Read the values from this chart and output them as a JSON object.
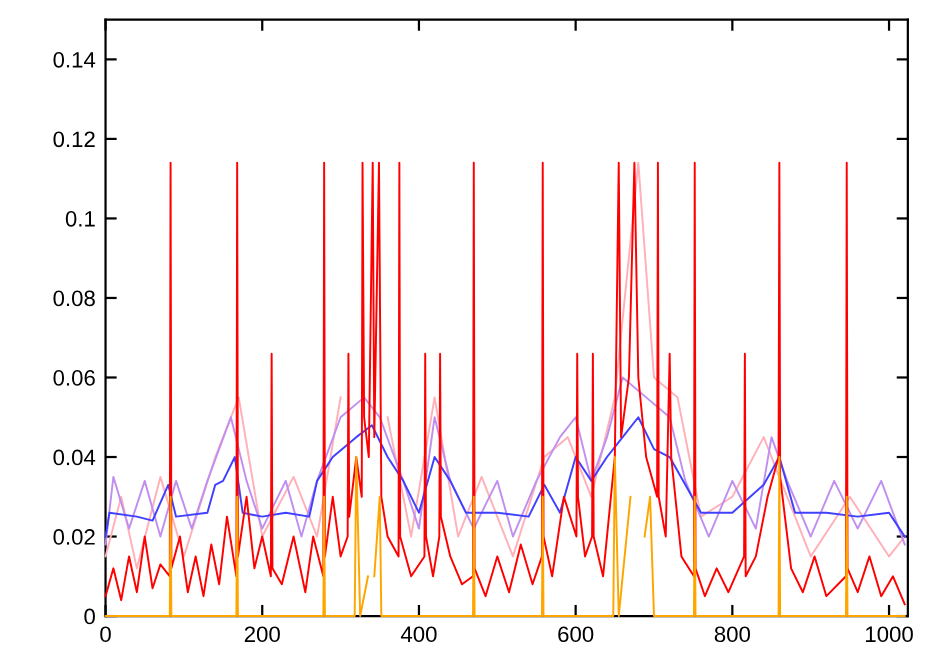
{
  "chart_data": {
    "type": "line",
    "xlim": [
      0,
      1024
    ],
    "ylim": [
      0,
      0.15
    ],
    "xticks": [
      0,
      200,
      400,
      600,
      800,
      1000
    ],
    "yticks": [
      0,
      0.02,
      0.04,
      0.06,
      0.08,
      0.1,
      0.12,
      0.14
    ],
    "grid": false,
    "marker": "none",
    "line_style": "solid",
    "series": [
      {
        "color": "#ffb0b8",
        "x": [
          0,
          20,
          40,
          70,
          100,
          140,
          170,
          200,
          240,
          270,
          300,
          340,
          360,
          390,
          420,
          450,
          480,
          520,
          560,
          590,
          620,
          650,
          680,
          700,
          730,
          760,
          800,
          840,
          870,
          900,
          950,
          1000,
          1020
        ],
        "values": [
          0.015,
          0.03,
          0.012,
          0.035,
          0.015,
          0.04,
          0.055,
          0.02,
          0.035,
          0.02,
          0.055,
          null,
          0.05,
          0.02,
          0.055,
          0.02,
          0.035,
          0.015,
          0.04,
          0.045,
          0.03,
          0.055,
          0.114,
          0.06,
          0.055,
          0.025,
          0.03,
          0.045,
          0.03,
          0.015,
          0.03,
          0.015,
          0.02
        ]
      },
      {
        "color": "#c090f0",
        "x": [
          0,
          10,
          30,
          50,
          70,
          90,
          110,
          130,
          160,
          180,
          200,
          230,
          250,
          270,
          300,
          330,
          350,
          380,
          400,
          420,
          440,
          470,
          500,
          520,
          550,
          580,
          600,
          620,
          640,
          660,
          690,
          720,
          740,
          770,
          800,
          830,
          850,
          870,
          900,
          930,
          960,
          990,
          1020
        ],
        "values": [
          0.018,
          0.035,
          0.022,
          0.034,
          0.02,
          0.034,
          0.022,
          0.034,
          0.05,
          0.034,
          0.022,
          0.034,
          0.02,
          0.034,
          0.05,
          0.055,
          0.05,
          0.034,
          0.022,
          0.05,
          0.034,
          0.022,
          0.034,
          0.02,
          0.034,
          0.045,
          0.05,
          0.034,
          0.045,
          0.06,
          0.055,
          0.05,
          0.034,
          0.02,
          0.034,
          0.022,
          0.045,
          0.034,
          0.02,
          0.034,
          0.022,
          0.034,
          0.018
        ]
      },
      {
        "color": "#4040ff",
        "x": [
          0,
          5,
          40,
          60,
          80,
          90,
          130,
          140,
          150,
          165,
          175,
          200,
          230,
          260,
          270,
          290,
          320,
          340,
          360,
          380,
          400,
          420,
          440,
          460,
          500,
          540,
          560,
          580,
          600,
          620,
          640,
          660,
          680,
          700,
          720,
          740,
          760,
          800,
          840,
          860,
          880,
          920,
          960,
          1000,
          1020
        ],
        "values": [
          0.02,
          0.026,
          0.025,
          0.024,
          0.033,
          0.025,
          0.026,
          0.033,
          0.034,
          0.04,
          0.026,
          0.025,
          0.026,
          0.025,
          0.034,
          0.04,
          0.045,
          0.048,
          0.04,
          0.034,
          0.026,
          0.04,
          0.034,
          0.026,
          0.026,
          0.025,
          0.033,
          0.026,
          0.04,
          0.034,
          0.04,
          0.045,
          0.05,
          0.042,
          0.04,
          0.033,
          0.026,
          0.026,
          0.033,
          0.04,
          0.026,
          0.026,
          0.025,
          0.026,
          0.02
        ]
      },
      {
        "color": "#ff0000",
        "x": [
          0,
          10,
          20,
          30,
          40,
          50,
          60,
          70,
          82,
          83,
          84,
          95,
          105,
          115,
          125,
          135,
          145,
          155,
          167,
          168,
          169,
          180,
          190,
          200,
          211,
          212,
          213,
          225,
          240,
          255,
          265,
          278,
          279,
          280,
          290,
          300,
          309,
          310,
          311,
          320,
          327,
          328,
          330,
          336,
          341,
          343,
          349,
          352,
          360,
          374,
          375,
          376,
          390,
          407,
          408,
          409,
          418,
          426,
          427,
          428,
          440,
          455,
          469,
          470,
          471,
          485,
          500,
          515,
          530,
          545,
          557,
          558,
          559,
          570,
          585,
          601,
          602,
          603,
          612,
          621,
          622,
          623,
          635,
          650,
          655,
          658,
          668,
          675,
          680,
          690,
          704,
          705,
          706,
          715,
          720,
          722,
          735,
          751,
          752,
          753,
          765,
          780,
          795,
          815,
          816,
          817,
          830,
          845,
          859,
          860,
          861,
          875,
          890,
          905,
          920,
          945,
          946,
          947,
          960,
          975,
          990,
          1005,
          1020
        ],
        "values": [
          0.005,
          0.012,
          0.004,
          0.015,
          0.006,
          0.02,
          0.007,
          0.013,
          0.01,
          0.114,
          0.012,
          0.02,
          0.006,
          0.015,
          0.005,
          0.018,
          0.008,
          0.025,
          0.01,
          0.114,
          0.015,
          0.03,
          0.012,
          0.02,
          0.01,
          0.066,
          0.012,
          0.008,
          0.02,
          0.006,
          0.02,
          0.01,
          0.114,
          0.015,
          0.03,
          0.015,
          0.02,
          0.066,
          0.025,
          0.04,
          0.03,
          0.114,
          0.05,
          0.04,
          0.114,
          0.045,
          0.114,
          0.03,
          0.02,
          0.015,
          0.114,
          0.02,
          0.01,
          0.015,
          0.066,
          0.02,
          0.01,
          0.02,
          0.066,
          0.025,
          0.015,
          0.008,
          0.01,
          0.114,
          0.012,
          0.005,
          0.015,
          0.006,
          0.018,
          0.008,
          0.015,
          0.114,
          0.02,
          0.01,
          0.03,
          0.02,
          0.066,
          0.03,
          0.015,
          0.02,
          0.066,
          0.02,
          0.01,
          0.04,
          0.114,
          0.045,
          0.06,
          0.114,
          0.06,
          0.04,
          0.03,
          0.114,
          0.03,
          0.02,
          0.066,
          0.04,
          0.015,
          0.01,
          0.114,
          0.012,
          0.005,
          0.012,
          0.006,
          0.015,
          0.066,
          0.01,
          0.015,
          0.03,
          0.04,
          0.114,
          0.035,
          0.012,
          0.006,
          0.015,
          0.005,
          0.01,
          0.114,
          0.012,
          0.006,
          0.015,
          0.005,
          0.01,
          0.003
        ]
      },
      {
        "color": "#ffa500",
        "x": [
          0,
          82,
          83,
          84,
          167,
          168,
          169,
          278,
          279,
          280,
          318,
          320,
          325,
          335,
          340,
          343,
          350,
          352,
          469,
          470,
          471,
          557,
          558,
          559,
          648,
          650,
          655,
          670,
          680,
          684,
          688,
          695,
          700,
          751,
          752,
          753,
          859,
          860,
          861,
          945,
          946,
          947,
          1020
        ],
        "values": [
          0,
          0,
          0.03,
          0,
          0,
          0.03,
          0,
          0,
          0.03,
          0,
          0,
          0.04,
          0,
          0.01,
          null,
          0.01,
          0.03,
          0,
          0,
          0.03,
          0,
          0,
          0.03,
          0,
          0,
          0.04,
          0,
          0.03,
          null,
          null,
          0.02,
          0.03,
          0,
          0,
          0.03,
          0,
          0,
          0.04,
          0,
          0,
          0.03,
          0,
          0
        ]
      }
    ]
  }
}
